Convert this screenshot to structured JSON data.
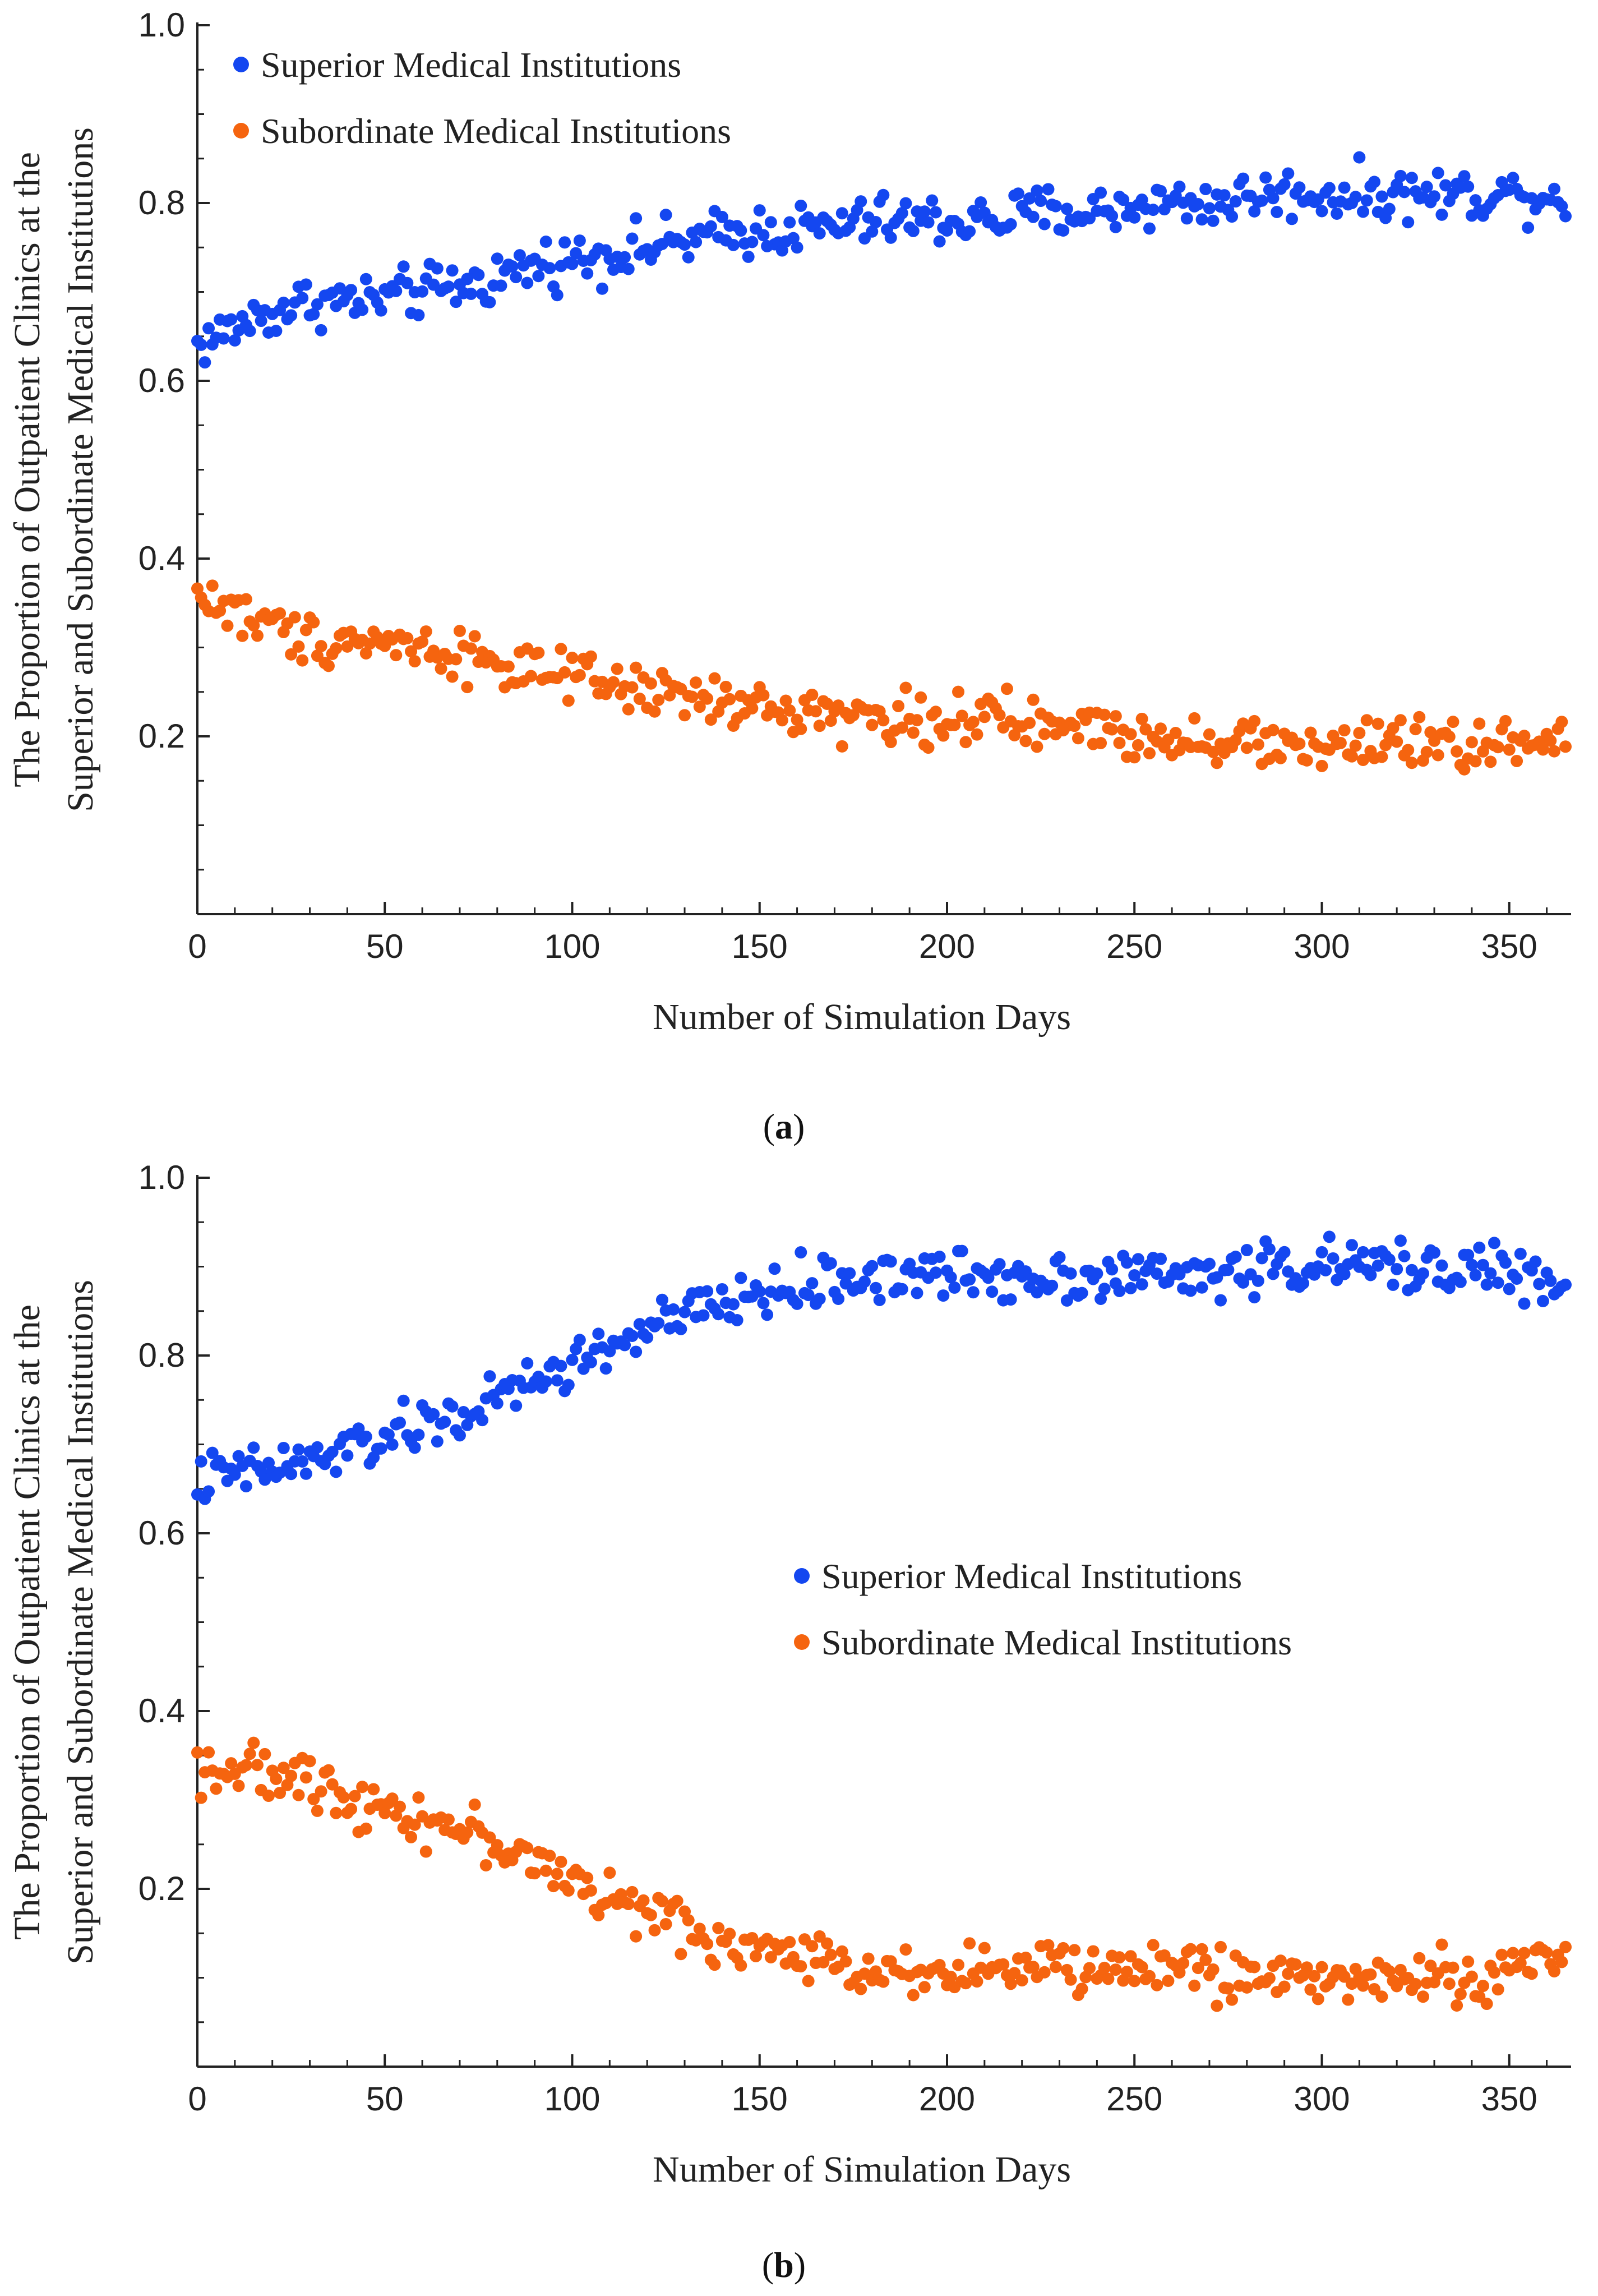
{
  "chart_data": [
    {
      "type": "scatter",
      "panel_label": "a",
      "xlabel": "Number of Simulation Days",
      "ylabel_lines": [
        "The Proportion of Outpatient Clinics at the",
        "Superior and Subordinate Medical Institutions"
      ],
      "xlim": [
        0,
        365
      ],
      "ylim": [
        0,
        1.0
      ],
      "xticks": [
        0,
        50,
        100,
        150,
        200,
        250,
        300,
        350
      ],
      "yticks": [
        0.2,
        0.4,
        0.6,
        0.8,
        1.0
      ],
      "ytick_labels": [
        "0.2",
        "0.4",
        "0.6",
        "0.8",
        "1.0"
      ],
      "legend_position": "top-left",
      "series": [
        {
          "name": "Superior Medical Institutions",
          "color": "#1447f0",
          "x": [
            0,
            15,
            30,
            45,
            60,
            75,
            90,
            105,
            120,
            135,
            150,
            165,
            180,
            195,
            210,
            225,
            240,
            255,
            270,
            285,
            300,
            315,
            330,
            345,
            365
          ],
          "values": [
            0.64,
            0.67,
            0.69,
            0.69,
            0.7,
            0.71,
            0.73,
            0.74,
            0.75,
            0.76,
            0.77,
            0.77,
            0.78,
            0.78,
            0.78,
            0.79,
            0.79,
            0.8,
            0.8,
            0.81,
            0.81,
            0.81,
            0.81,
            0.81,
            0.81
          ]
        },
        {
          "name": "Subordinate Medical Institutions",
          "color": "#f5640f",
          "x": [
            0,
            15,
            30,
            45,
            60,
            75,
            90,
            105,
            120,
            135,
            150,
            165,
            180,
            195,
            210,
            225,
            240,
            255,
            270,
            285,
            300,
            315,
            330,
            345,
            365
          ],
          "values": [
            0.36,
            0.33,
            0.31,
            0.31,
            0.3,
            0.29,
            0.27,
            0.26,
            0.25,
            0.24,
            0.23,
            0.23,
            0.22,
            0.22,
            0.22,
            0.21,
            0.21,
            0.2,
            0.2,
            0.19,
            0.19,
            0.19,
            0.19,
            0.19,
            0.19
          ]
        }
      ]
    },
    {
      "type": "scatter",
      "panel_label": "b",
      "xlabel": "Number of Simulation Days",
      "ylabel_lines": [
        "The Proportion of Outpatient Clinics at the",
        "Superior and Subordinate Medical Institutions"
      ],
      "xlim": [
        0,
        365
      ],
      "ylim": [
        0,
        1.0
      ],
      "xticks": [
        0,
        50,
        100,
        150,
        200,
        250,
        300,
        350
      ],
      "yticks": [
        0.2,
        0.4,
        0.6,
        0.8,
        1.0
      ],
      "ytick_labels": [
        "0.2",
        "0.4",
        "0.6",
        "0.8",
        "1.0"
      ],
      "legend_position": "center-right",
      "series": [
        {
          "name": "Superior Medical Institutions",
          "color": "#1447f0",
          "x": [
            0,
            15,
            30,
            45,
            60,
            75,
            90,
            105,
            120,
            135,
            150,
            165,
            180,
            195,
            210,
            225,
            240,
            255,
            270,
            285,
            300,
            315,
            330,
            345,
            365
          ],
          "values": [
            0.66,
            0.67,
            0.68,
            0.7,
            0.72,
            0.74,
            0.77,
            0.8,
            0.83,
            0.85,
            0.87,
            0.88,
            0.89,
            0.89,
            0.89,
            0.89,
            0.89,
            0.89,
            0.89,
            0.9,
            0.9,
            0.9,
            0.9,
            0.9,
            0.87
          ]
        },
        {
          "name": "Subordinate Medical Institutions",
          "color": "#f5640f",
          "x": [
            0,
            15,
            30,
            45,
            60,
            75,
            90,
            105,
            120,
            135,
            150,
            165,
            180,
            195,
            210,
            225,
            240,
            255,
            270,
            285,
            300,
            315,
            330,
            345,
            365
          ],
          "values": [
            0.34,
            0.33,
            0.32,
            0.3,
            0.28,
            0.26,
            0.23,
            0.2,
            0.17,
            0.15,
            0.13,
            0.12,
            0.11,
            0.11,
            0.11,
            0.11,
            0.11,
            0.11,
            0.11,
            0.1,
            0.1,
            0.1,
            0.1,
            0.1,
            0.13
          ]
        }
      ]
    }
  ]
}
